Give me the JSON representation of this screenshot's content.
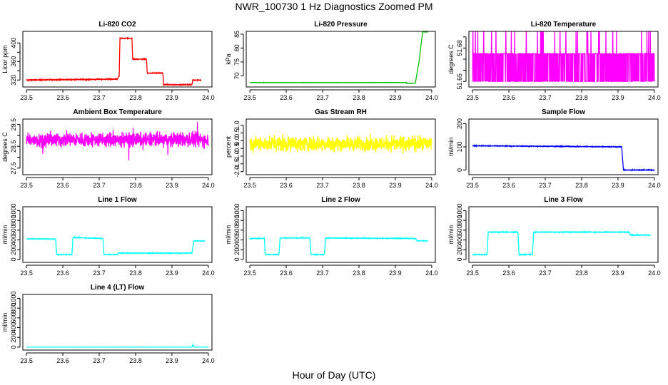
{
  "figure": {
    "title": "NWR_100730  1 Hz Diagnostics Zoomed PM",
    "xlabel": "Hour of Day (UTC)"
  },
  "chart_data": [
    {
      "type": "line",
      "title": "Li-820 CO2",
      "ylabel": "Licor ppm",
      "color": "#ff0000",
      "xlim": [
        23.49,
        24.01
      ],
      "ylim": [
        305,
        425
      ],
      "yticks": [
        320,
        340,
        360,
        380,
        400
      ],
      "yticklabels": [
        "320",
        "",
        "360",
        "",
        "400"
      ],
      "xticks": [
        23.5,
        23.6,
        23.7,
        23.8,
        23.9,
        24.0
      ],
      "series": [
        {
          "noise": 1.2,
          "values": [
            [
              23.5,
              320
            ],
            [
              23.75,
              322
            ],
            [
              23.755,
              330
            ],
            [
              23.757,
              410
            ],
            [
              23.79,
              410
            ],
            [
              23.792,
              365
            ],
            [
              23.83,
              365
            ],
            [
              23.832,
              335
            ],
            [
              23.875,
              335
            ],
            [
              23.877,
              310
            ],
            [
              23.955,
              310
            ],
            [
              23.957,
              320
            ],
            [
              23.98,
              320
            ]
          ]
        }
      ]
    },
    {
      "type": "line",
      "title": "Li-820 Pressure",
      "ylabel": "kPa",
      "color": "#00c000",
      "xlim": [
        23.49,
        24.01
      ],
      "ylim": [
        66,
        86
      ],
      "yticks": [
        70,
        75,
        80,
        85
      ],
      "yticklabels": [
        "70",
        "75",
        "80",
        "85"
      ],
      "xticks": [
        23.5,
        23.6,
        23.7,
        23.8,
        23.9,
        24.0
      ],
      "series": [
        {
          "noise": 0.05,
          "values": [
            [
              23.5,
              67.6
            ],
            [
              23.93,
              67.6
            ],
            [
              23.931,
              67.3
            ],
            [
              23.955,
              67.4
            ],
            [
              23.965,
              75
            ],
            [
              23.975,
              85.8
            ],
            [
              23.99,
              85.8
            ]
          ]
        }
      ]
    },
    {
      "type": "line",
      "title": "Li-820 Temperature",
      "ylabel": "degrees C",
      "color": "#ff00ff",
      "xlim": [
        23.49,
        24.01
      ],
      "ylim": [
        51.645,
        51.695
      ],
      "yticks": [
        51.65,
        51.66,
        51.67,
        51.68,
        51.69
      ],
      "yticklabels": [
        "51.65",
        "",
        "",
        "51.68",
        ""
      ],
      "xticks": [
        23.5,
        23.6,
        23.7,
        23.8,
        23.9,
        24.0
      ],
      "series": [
        {
          "values": [
            [
              23.5,
              51.65
            ],
            [
              24.0,
              51.675
            ]
          ],
          "quantized": [
            51.65,
            51.675,
            51.7
          ]
        }
      ]
    },
    {
      "type": "line",
      "title": "Ambient Box Temperature",
      "ylabel": "degrees C",
      "color": "#ff00ff",
      "xlim": [
        23.49,
        24.01
      ],
      "ylim": [
        27.2,
        29.75
      ],
      "yticks": [
        27.5,
        28.0,
        28.5,
        29.0,
        29.5
      ],
      "yticklabels": [
        "27.5",
        "",
        "28.5",
        "",
        "29.5"
      ],
      "xticks": [
        23.5,
        23.6,
        23.7,
        23.8,
        23.9,
        24.0
      ],
      "series": [
        {
          "noise": 0.5,
          "values": [
            [
              23.5,
              28.8
            ],
            [
              24.0,
              28.8
            ]
          ]
        }
      ]
    },
    {
      "type": "line",
      "title": "Gas Stream RH",
      "ylabel": "percent",
      "color": "#ffff00",
      "xlim": [
        23.49,
        24.01
      ],
      "ylim": [
        -2.2,
        1.4
      ],
      "yticks": [
        -2.0,
        -1.5,
        -1.0,
        -0.5,
        0.0,
        0.5,
        1.0
      ],
      "yticklabels": [
        "-2.0",
        "-1.5",
        "-1.0",
        "-0.5",
        "0.0",
        "0.5",
        "1.0"
      ],
      "xticks": [
        23.5,
        23.6,
        23.7,
        23.8,
        23.9,
        24.0
      ],
      "series": [
        {
          "noise": 0.7,
          "values": [
            [
              23.5,
              -0.2
            ],
            [
              24.0,
              -0.2
            ]
          ]
        }
      ]
    },
    {
      "type": "line",
      "title": "Sample Flow",
      "ylabel": "ml/min",
      "color": "#0000ff",
      "xlim": [
        23.49,
        24.01
      ],
      "ylim": [
        -20,
        220
      ],
      "yticks": [
        0,
        100,
        200
      ],
      "yticklabels": [
        "0",
        "100",
        "200"
      ],
      "xticks": [
        23.5,
        23.6,
        23.7,
        23.8,
        23.9,
        24.0
      ],
      "series": [
        {
          "noise": 2,
          "values": [
            [
              23.5,
              105
            ],
            [
              23.91,
              100
            ],
            [
              23.915,
              0
            ],
            [
              24.0,
              0
            ]
          ]
        }
      ]
    },
    {
      "type": "line",
      "title": "Line 1 Flow",
      "ylabel": "ml/min",
      "color": "#00ffff",
      "xlim": [
        23.49,
        24.01
      ],
      "ylim": [
        -60,
        1080
      ],
      "yticks": [
        0,
        200,
        400,
        600,
        800,
        1000
      ],
      "yticklabels": [
        "0",
        "200",
        "400",
        "600",
        "800",
        "1000"
      ],
      "xticks": [
        23.5,
        23.6,
        23.7,
        23.8,
        23.9,
        24.0
      ],
      "series": [
        {
          "noise": 8,
          "values": [
            [
              23.5,
              420
            ],
            [
              23.58,
              420
            ],
            [
              23.583,
              100
            ],
            [
              23.625,
              100
            ],
            [
              23.628,
              450
            ],
            [
              23.71,
              430
            ],
            [
              23.713,
              100
            ],
            [
              23.75,
              100
            ],
            [
              23.753,
              130
            ],
            [
              23.955,
              130
            ],
            [
              23.96,
              380
            ],
            [
              23.99,
              380
            ]
          ]
        }
      ]
    },
    {
      "type": "line",
      "title": "Line 2 Flow",
      "ylabel": "ml/min",
      "color": "#00ffff",
      "xlim": [
        23.49,
        24.01
      ],
      "ylim": [
        -60,
        1080
      ],
      "yticks": [
        0,
        200,
        400,
        600,
        800,
        1000
      ],
      "yticklabels": [
        "0",
        "200",
        "400",
        "600",
        "800",
        "1000"
      ],
      "xticks": [
        23.5,
        23.6,
        23.7,
        23.8,
        23.9,
        24.0
      ],
      "series": [
        {
          "noise": 8,
          "values": [
            [
              23.5,
              430
            ],
            [
              23.54,
              430
            ],
            [
              23.542,
              100
            ],
            [
              23.58,
              100
            ],
            [
              23.583,
              440
            ],
            [
              23.665,
              440
            ],
            [
              23.668,
              100
            ],
            [
              23.705,
              100
            ],
            [
              23.708,
              440
            ],
            [
              23.955,
              430
            ],
            [
              23.96,
              380
            ],
            [
              23.99,
              380
            ]
          ]
        }
      ]
    },
    {
      "type": "line",
      "title": "Line 3 Flow",
      "ylabel": "ml/min",
      "color": "#00ffff",
      "xlim": [
        23.49,
        24.01
      ],
      "ylim": [
        -60,
        1080
      ],
      "yticks": [
        0,
        200,
        400,
        600,
        800,
        1000
      ],
      "yticklabels": [
        "0",
        "200",
        "400",
        "600",
        "800",
        "1000"
      ],
      "xticks": [
        23.5,
        23.6,
        23.7,
        23.8,
        23.9,
        24.0
      ],
      "series": [
        {
          "noise": 10,
          "values": [
            [
              23.5,
              100
            ],
            [
              23.54,
              100
            ],
            [
              23.543,
              560
            ],
            [
              23.625,
              560
            ],
            [
              23.628,
              100
            ],
            [
              23.665,
              100
            ],
            [
              23.668,
              560
            ],
            [
              23.93,
              560
            ],
            [
              23.935,
              500
            ],
            [
              23.99,
              500
            ]
          ]
        }
      ]
    },
    {
      "type": "line",
      "title": "Line 4 (LT) Flow",
      "ylabel": "ml/min",
      "color": "#00ffff",
      "xlim": [
        23.49,
        24.01
      ],
      "ylim": [
        -60,
        1080
      ],
      "yticks": [
        0,
        200,
        400,
        600,
        800,
        1000
      ],
      "yticklabels": [
        "0",
        "200",
        "400",
        "600",
        "800",
        "1000"
      ],
      "xticks": [
        23.5,
        23.6,
        23.7,
        23.8,
        23.9,
        24.0
      ],
      "series": [
        {
          "noise": 1,
          "values": [
            [
              23.5,
              0
            ],
            [
              23.955,
              0
            ],
            [
              23.958,
              60
            ],
            [
              23.961,
              0
            ],
            [
              24.0,
              0
            ]
          ]
        }
      ]
    }
  ]
}
